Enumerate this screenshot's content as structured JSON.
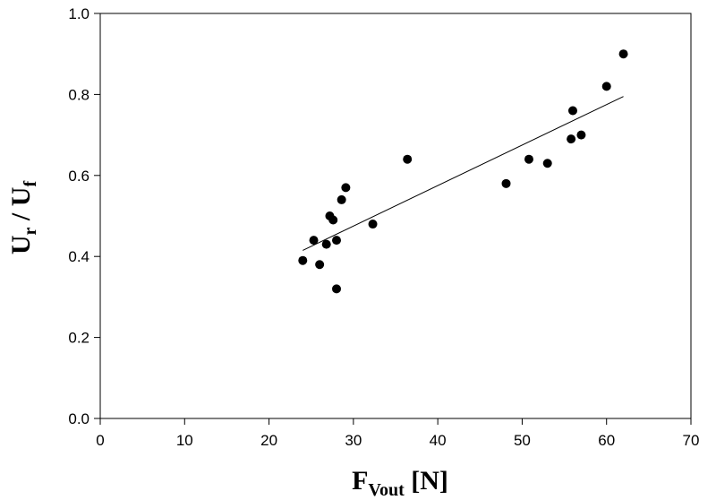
{
  "chart_data": {
    "type": "scatter",
    "xlabel": {
      "main": "F",
      "sub": "Vout",
      "rest": " [N]"
    },
    "ylabel": {
      "main1": "U",
      "sub1": "r",
      "mid": " / ",
      "main2": "U",
      "sub2": "f"
    },
    "xlim": [
      0,
      70
    ],
    "ylim": [
      0.0,
      1.0
    ],
    "x_ticks": [
      "0",
      "10",
      "20",
      "30",
      "40",
      "50",
      "60",
      "70"
    ],
    "y_ticks": [
      "0.0",
      "0.2",
      "0.4",
      "0.6",
      "0.8",
      "1.0"
    ],
    "grid": false,
    "legend": "none",
    "marker_color": "#000000",
    "points": [
      {
        "x": 24.0,
        "y": 0.39
      },
      {
        "x": 25.3,
        "y": 0.44
      },
      {
        "x": 26.0,
        "y": 0.38
      },
      {
        "x": 26.8,
        "y": 0.43
      },
      {
        "x": 27.2,
        "y": 0.5
      },
      {
        "x": 27.6,
        "y": 0.49
      },
      {
        "x": 28.0,
        "y": 0.44
      },
      {
        "x": 28.0,
        "y": 0.32
      },
      {
        "x": 28.6,
        "y": 0.54
      },
      {
        "x": 29.1,
        "y": 0.57
      },
      {
        "x": 32.3,
        "y": 0.48
      },
      {
        "x": 36.4,
        "y": 0.64
      },
      {
        "x": 48.1,
        "y": 0.58
      },
      {
        "x": 50.8,
        "y": 0.64
      },
      {
        "x": 53.0,
        "y": 0.63
      },
      {
        "x": 55.8,
        "y": 0.69
      },
      {
        "x": 56.0,
        "y": 0.76
      },
      {
        "x": 57.0,
        "y": 0.7
      },
      {
        "x": 60.0,
        "y": 0.82
      },
      {
        "x": 62.0,
        "y": 0.9
      }
    ],
    "trendline": {
      "type": "linear",
      "x": [
        24.0,
        62.0
      ],
      "y": [
        0.415,
        0.795
      ]
    }
  }
}
